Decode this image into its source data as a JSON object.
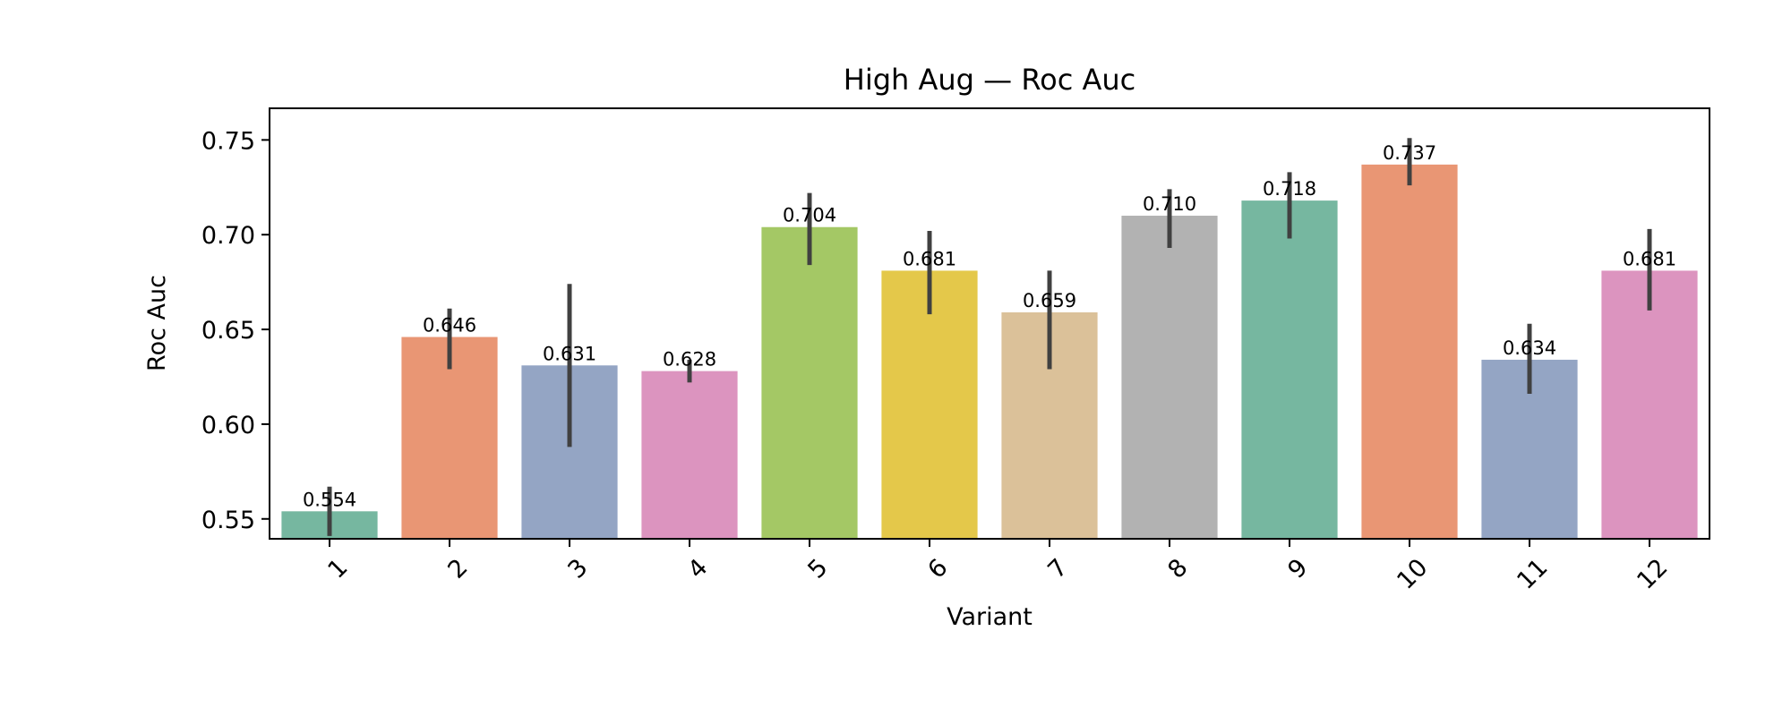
{
  "chart_data": {
    "type": "bar",
    "title": "High Aug — Roc Auc",
    "xlabel": "Variant",
    "ylabel": "Roc Auc",
    "categories": [
      "1",
      "2",
      "3",
      "4",
      "5",
      "6",
      "7",
      "8",
      "9",
      "10",
      "11",
      "12"
    ],
    "values": [
      0.554,
      0.646,
      0.631,
      0.628,
      0.704,
      0.681,
      0.659,
      0.71,
      0.718,
      0.737,
      0.634,
      0.681
    ],
    "value_labels": [
      "0.554",
      "0.646",
      "0.631",
      "0.628",
      "0.704",
      "0.681",
      "0.659",
      "0.710",
      "0.718",
      "0.737",
      "0.634",
      "0.681"
    ],
    "error_low": [
      0.541,
      0.629,
      0.588,
      0.622,
      0.684,
      0.658,
      0.629,
      0.693,
      0.698,
      0.726,
      0.616,
      0.66
    ],
    "error_high": [
      0.567,
      0.661,
      0.674,
      0.634,
      0.722,
      0.702,
      0.681,
      0.724,
      0.733,
      0.751,
      0.653,
      0.703
    ],
    "colors": [
      "#76b7a0",
      "#e99674",
      "#94a5c4",
      "#dc94bf",
      "#a4c865",
      "#e4c84a",
      "#dbc199",
      "#b2b2b2",
      "#76b7a0",
      "#e99674",
      "#94a5c4",
      "#dc94bf"
    ],
    "error_color": "#404040",
    "yticks": [
      0.55,
      0.6,
      0.65,
      0.7,
      0.75
    ],
    "ytick_labels": [
      "0.55",
      "0.60",
      "0.65",
      "0.70",
      "0.75"
    ],
    "ylim": [
      0.5395,
      0.7667
    ],
    "grid": false,
    "legend": "none"
  }
}
